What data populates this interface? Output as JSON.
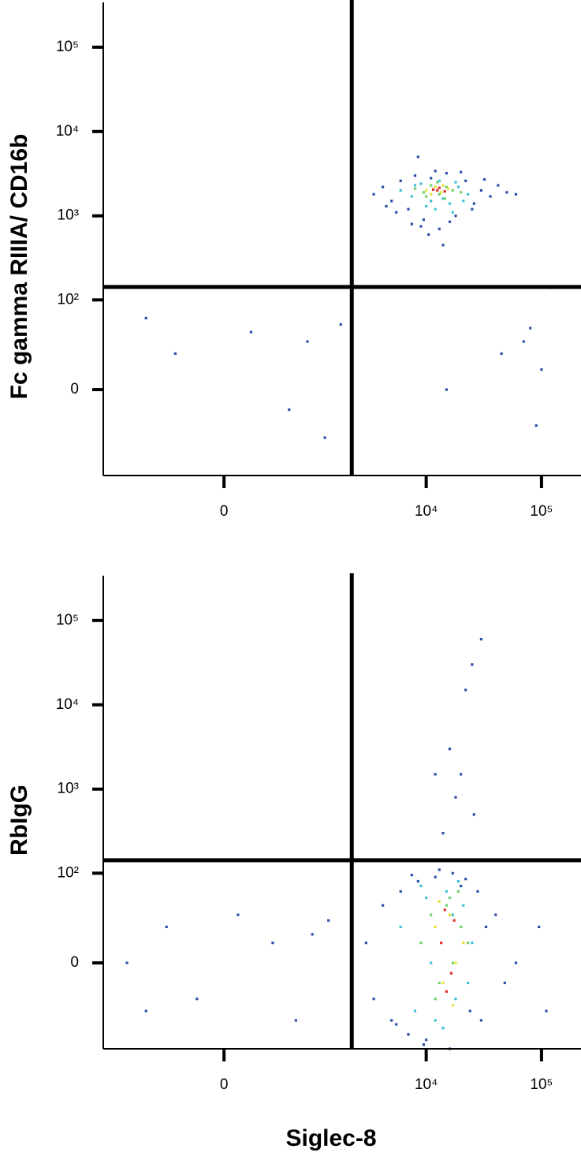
{
  "chart_data": [
    {
      "type": "scatter",
      "scale": "asinh",
      "ylabel": "Fc gamma RIIIA/ CD16b",
      "xlim": [
        -1950,
        220000
      ],
      "ylim": [
        -90,
        340000
      ],
      "xticks": [
        0,
        {
          "value": 10000,
          "label": "10⁴"
        },
        {
          "value": 100000,
          "label": "10⁵"
        }
      ],
      "yticks": [
        0,
        {
          "value": 100,
          "label": "10²"
        },
        {
          "value": 1000,
          "label": "10³"
        },
        {
          "value": 10000,
          "label": "10⁴"
        },
        {
          "value": 100000,
          "label": "10⁵"
        }
      ],
      "gates": {
        "x": 2250,
        "y": 143
      },
      "series": [
        {
          "color": "#2b4fa8",
          "x": [
            3500,
            4200,
            5000,
            6000,
            7000,
            8000,
            9500,
            11000,
            13000,
            15000,
            18000,
            22000,
            26000,
            30000,
            36000,
            42000,
            50000,
            60000,
            4500,
            5500,
            7500,
            9000,
            12000,
            16000,
            20000,
            25000,
            32000,
            8500,
            10500,
            14000,
            -800,
            -400,
            200,
            600,
            900,
            1300,
            1800,
            45000,
            70000,
            90000,
            80000,
            100000,
            120000,
            15000
          ],
          "y": [
            1800,
            2200,
            1500,
            2600,
            1200,
            3000,
            900,
            2800,
            700,
            3200,
            1000,
            2600,
            1400,
            2000,
            1700,
            2300,
            1900,
            1800,
            1300,
            1100,
            800,
            750,
            3400,
            850,
            3300,
            1200,
            2700,
            5000,
            600,
            450,
            60,
            20,
            40,
            -10,
            30,
            -30,
            50,
            20,
            30,
            -20,
            45,
            10,
            140,
            0
          ]
        },
        {
          "color": "#3fc0d8",
          "x": [
            6000,
            7500,
            9000,
            11000,
            13000,
            16000,
            19000,
            23000,
            8000,
            10000,
            14000,
            18000,
            21000,
            12000,
            17000
          ],
          "y": [
            2000,
            1700,
            2400,
            1500,
            2600,
            1400,
            2200,
            1800,
            2300,
            1300,
            1600,
            2500,
            1500,
            1200,
            1100
          ]
        },
        {
          "color": "#6fd36a",
          "x": [
            8000,
            9500,
            11000,
            13000,
            15000,
            17000,
            20000,
            10000,
            12500,
            14500
          ],
          "y": [
            2100,
            1900,
            2300,
            1800,
            2200,
            2000,
            1900,
            1700,
            2500,
            1600
          ]
        },
        {
          "color": "#e8e03a",
          "x": [
            10000,
            12000,
            13500,
            15500,
            11000,
            14000
          ],
          "y": [
            2000,
            2200,
            1900,
            2100,
            1800,
            2300
          ]
        },
        {
          "color": "#e0302a",
          "x": [
            11500,
            13000,
            14500,
            12500
          ],
          "y": [
            2050,
            2150,
            1950,
            2000
          ]
        }
      ]
    },
    {
      "type": "scatter",
      "scale": "asinh",
      "ylabel": "RbIgG",
      "xlabel": "Siglec-8",
      "xlim": [
        -1950,
        220000
      ],
      "ylim": [
        -90,
        340000
      ],
      "xticks": [
        0,
        {
          "value": 10000,
          "label": "10⁴"
        },
        {
          "value": 100000,
          "label": "10⁵"
        }
      ],
      "yticks": [
        0,
        {
          "value": 100,
          "label": "10²"
        },
        {
          "value": 1000,
          "label": "10³"
        },
        {
          "value": 10000,
          "label": "10⁴"
        },
        {
          "value": 100000,
          "label": "10⁵"
        }
      ],
      "gates": {
        "x": 2250,
        "y": 143
      },
      "series": [
        {
          "color": "#2b4fa8",
          "x": [
            3000,
            3500,
            4200,
            5000,
            6000,
            7000,
            8500,
            10000,
            12000,
            14000,
            17000,
            20000,
            24000,
            28000,
            33000,
            40000,
            48000,
            60000,
            5500,
            7500,
            9500,
            13000,
            16000,
            22000,
            30000,
            -1200,
            -800,
            -500,
            -200,
            100,
            400,
            700,
            1000,
            1400,
            14000,
            18000,
            20000,
            25000,
            16000,
            22000,
            12000,
            30000,
            26000,
            95000,
            110000
          ],
          "y": [
            10,
            -20,
            40,
            -40,
            60,
            -60,
            80,
            -70,
            90,
            -50,
            100,
            70,
            -30,
            60,
            20,
            30,
            -10,
            0,
            -45,
            95,
            -80,
            110,
            -90,
            85,
            -40,
            0,
            -30,
            20,
            -20,
            30,
            10,
            -40,
            15,
            25,
            300,
            800,
            1500,
            30000,
            3000,
            15000,
            1500,
            60000,
            500,
            20,
            -30
          ]
        },
        {
          "color": "#3fc0d8",
          "x": [
            6000,
            8000,
            10000,
            12000,
            15000,
            18000,
            21000,
            25000,
            9000,
            14000,
            19000,
            23000,
            11000,
            17000
          ],
          "y": [
            20,
            -30,
            50,
            -40,
            60,
            -20,
            40,
            10,
            70,
            -50,
            80,
            -10,
            0,
            30
          ]
        },
        {
          "color": "#6fd36a",
          "x": [
            9000,
            11000,
            13000,
            15000,
            17000,
            20000,
            23000,
            12000,
            16000,
            19000
          ],
          "y": [
            10,
            30,
            -10,
            40,
            0,
            20,
            10,
            -20,
            50,
            60
          ]
        },
        {
          "color": "#e8e03a",
          "x": [
            12000,
            14000,
            16000,
            18000,
            21000,
            13000,
            17000
          ],
          "y": [
            20,
            -10,
            30,
            0,
            10,
            45,
            -25
          ]
        },
        {
          "color": "#e0302a",
          "x": [
            13500,
            15000,
            17500,
            14500,
            16500
          ],
          "y": [
            10,
            -15,
            25,
            35,
            -5
          ]
        }
      ]
    }
  ]
}
